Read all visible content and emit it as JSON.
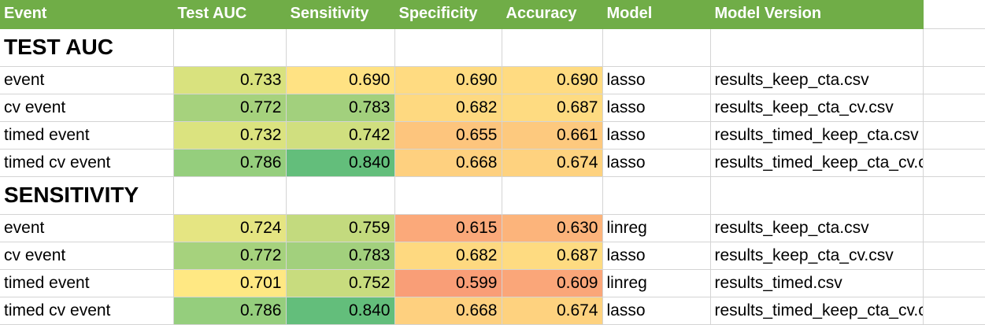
{
  "header": [
    "Event",
    "Test AUC",
    "Sensitivity",
    "Specificity",
    "Accuracy",
    "Model",
    "Model Version"
  ],
  "sections": [
    {
      "title": "TEST AUC",
      "rows": [
        {
          "event": "event",
          "test_auc": "0.733",
          "sensitivity": "0.690",
          "specificity": "0.690",
          "accuracy": "0.690",
          "model": "lasso",
          "version": "results_keep_cta.csv",
          "fills": [
            "#d9e27e",
            "#ffe283",
            "#ffdb81",
            "#ffdb81"
          ]
        },
        {
          "event": "cv event",
          "test_auc": "0.772",
          "sensitivity": "0.783",
          "specificity": "0.682",
          "accuracy": "0.687",
          "model": "lasso",
          "version": "results_keep_cta_cv.csv",
          "fills": [
            "#a6d27d",
            "#a2d07d",
            "#fed980",
            "#fedb81"
          ]
        },
        {
          "event": "timed event",
          "test_auc": "0.732",
          "sensitivity": "0.742",
          "specificity": "0.655",
          "accuracy": "0.661",
          "model": "lasso",
          "version": "results_timed_keep_cta.csv",
          "fills": [
            "#dbe37f",
            "#d0df7f",
            "#fdc57d",
            "#fdc97e"
          ]
        },
        {
          "event": "timed cv event",
          "test_auc": "0.786",
          "sensitivity": "0.840",
          "specificity": "0.668",
          "accuracy": "0.674",
          "model": "lasso",
          "version": "results_timed_keep_cta_cv.csv",
          "fills": [
            "#95ce7d",
            "#63be7b",
            "#fed07f",
            "#fed27f"
          ]
        }
      ]
    },
    {
      "title": "SENSITIVITY",
      "rows": [
        {
          "event": "event",
          "test_auc": "0.724",
          "sensitivity": "0.759",
          "specificity": "0.615",
          "accuracy": "0.630",
          "model": "linreg",
          "version": "results_keep_cta.csv",
          "fills": [
            "#e5e582",
            "#c3da7e",
            "#fba97a",
            "#fcb47b"
          ]
        },
        {
          "event": "cv event",
          "test_auc": "0.772",
          "sensitivity": "0.783",
          "specificity": "0.682",
          "accuracy": "0.687",
          "model": "lasso",
          "version": "results_keep_cta_cv.csv",
          "fills": [
            "#a6d27d",
            "#a2d07d",
            "#fed980",
            "#fedb81"
          ]
        },
        {
          "event": "timed event",
          "test_auc": "0.701",
          "sensitivity": "0.752",
          "specificity": "0.599",
          "accuracy": "0.609",
          "model": "linreg",
          "version": "results_timed.csv",
          "fills": [
            "#ffe883",
            "#c8dc7e",
            "#f99e77",
            "#faa679"
          ]
        },
        {
          "event": "timed cv event",
          "test_auc": "0.786",
          "sensitivity": "0.840",
          "specificity": "0.668",
          "accuracy": "0.674",
          "model": "lasso",
          "version": "results_timed_keep_cta_cv.csv",
          "fills": [
            "#95ce7d",
            "#63be7b",
            "#fed07f",
            "#fed27f"
          ]
        }
      ]
    }
  ]
}
